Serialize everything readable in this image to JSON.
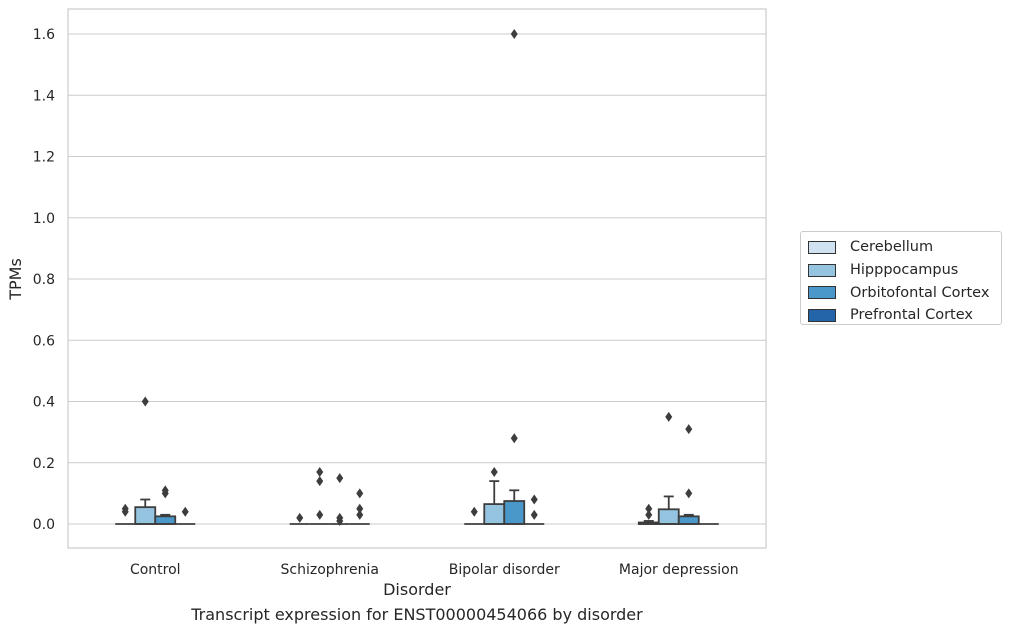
{
  "chart_data": {
    "type": "box",
    "xlabel": "Disorder",
    "ylabel": "TPMs",
    "caption": "Transcript expression for ENST00000454066 by disorder",
    "categories": [
      "Control",
      "Schizophrenia",
      "Bipolar disorder",
      "Major depression"
    ],
    "ylim": [
      -0.08,
      1.68
    ],
    "yticks": [
      "0.0",
      "0.2",
      "0.4",
      "0.6",
      "0.8",
      "1.0",
      "1.2",
      "1.4",
      "1.6"
    ],
    "ytick_values": [
      0,
      0.2,
      0.4,
      0.6,
      0.8,
      1.0,
      1.2,
      1.4,
      1.6
    ],
    "grid": true,
    "legend_position": "right",
    "series": [
      {
        "name": "Cerebellum",
        "color": "#d0e1f2",
        "boxes": [
          {
            "q1": 0,
            "median": 0,
            "q3": 0,
            "whisker_low": 0,
            "whisker_high": 0,
            "outliers": [
              0.04,
              0.05
            ]
          },
          {
            "q1": 0,
            "median": 0,
            "q3": 0,
            "whisker_low": 0,
            "whisker_high": 0,
            "outliers": [
              0.02
            ]
          },
          {
            "q1": 0,
            "median": 0,
            "q3": 0,
            "whisker_low": 0,
            "whisker_high": 0,
            "outliers": [
              0.04
            ]
          },
          {
            "q1": 0,
            "median": 0,
            "q3": 0.005,
            "whisker_low": 0,
            "whisker_high": 0.01,
            "outliers": [
              0.03,
              0.05
            ]
          }
        ]
      },
      {
        "name": "Hipppocampus",
        "color": "#94c4df",
        "boxes": [
          {
            "q1": 0,
            "median": 0,
            "q3": 0.055,
            "whisker_low": 0,
            "whisker_high": 0.08,
            "outliers": [
              0.4
            ]
          },
          {
            "q1": 0,
            "median": 0,
            "q3": 0,
            "whisker_low": 0,
            "whisker_high": 0,
            "outliers": [
              0.03,
              0.14,
              0.17
            ]
          },
          {
            "q1": 0,
            "median": 0,
            "q3": 0.065,
            "whisker_low": 0,
            "whisker_high": 0.14,
            "outliers": [
              0.17
            ]
          },
          {
            "q1": 0,
            "median": 0,
            "q3": 0.048,
            "whisker_low": 0,
            "whisker_high": 0.09,
            "outliers": [
              0.35
            ]
          }
        ]
      },
      {
        "name": "Orbitofontal Cortex",
        "color": "#4a98c9",
        "boxes": [
          {
            "q1": 0,
            "median": 0,
            "q3": 0.025,
            "whisker_low": 0,
            "whisker_high": 0.03,
            "outliers": [
              0.1,
              0.11
            ]
          },
          {
            "q1": 0,
            "median": 0,
            "q3": 0,
            "whisker_low": 0,
            "whisker_high": 0,
            "outliers": [
              0.01,
              0.02,
              0.15
            ]
          },
          {
            "q1": 0,
            "median": 0,
            "q3": 0.075,
            "whisker_low": 0,
            "whisker_high": 0.11,
            "outliers": [
              0.28,
              1.6
            ]
          },
          {
            "q1": 0,
            "median": 0,
            "q3": 0.025,
            "whisker_low": 0,
            "whisker_high": 0.03,
            "outliers": [
              0.1,
              0.31
            ]
          }
        ]
      },
      {
        "name": "Prefrontal Cortex",
        "color": "#2464a8",
        "boxes": [
          {
            "q1": 0,
            "median": 0,
            "q3": 0,
            "whisker_low": 0,
            "whisker_high": 0,
            "outliers": [
              0.04
            ]
          },
          {
            "q1": 0,
            "median": 0,
            "q3": 0,
            "whisker_low": 0,
            "whisker_high": 0,
            "outliers": [
              0.03,
              0.05,
              0.1
            ]
          },
          {
            "q1": 0,
            "median": 0,
            "q3": 0,
            "whisker_low": 0,
            "whisker_high": 0,
            "outliers": [
              0.03,
              0.08
            ]
          },
          {
            "q1": 0,
            "median": 0,
            "q3": 0,
            "whisker_low": 0,
            "whisker_high": 0,
            "outliers": []
          }
        ]
      }
    ]
  }
}
